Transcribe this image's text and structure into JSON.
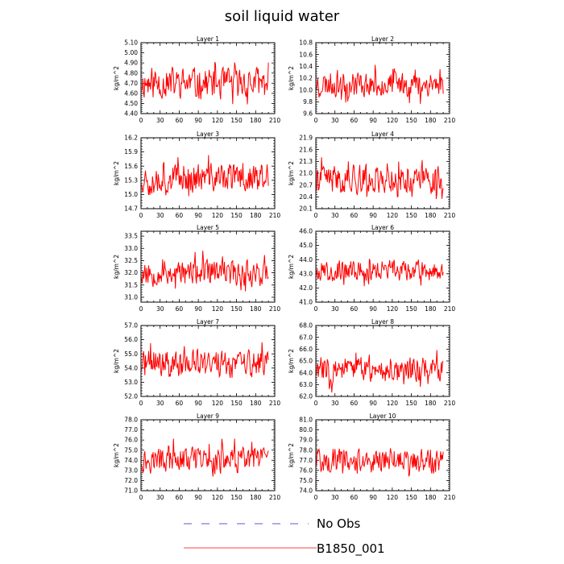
{
  "figure": {
    "title": "soil liquid water"
  },
  "legend": {
    "items": [
      {
        "label": "No Obs",
        "color": "#5a5ad8",
        "style": "dashed"
      },
      {
        "label": "B1850_001",
        "color": "#ff0000",
        "style": "solid"
      }
    ]
  },
  "chart_data": [
    {
      "type": "line",
      "title": "Layer 1",
      "ylabel": "kg/m^2",
      "xlim": [
        0,
        210
      ],
      "ylim": [
        4.4,
        5.1
      ],
      "xticks": [
        "0",
        "30",
        "60",
        "90",
        "120",
        "150",
        "180",
        "210"
      ],
      "yticks": [
        "4.40",
        "4.50",
        "4.60",
        "4.70",
        "4.80",
        "4.90",
        "5.00",
        "5.10"
      ],
      "series": [
        {
          "color": "#ff0000",
          "x_start": 1,
          "n": 200,
          "mean": 4.7,
          "amp": 0.25,
          "seed": 11
        }
      ]
    },
    {
      "type": "line",
      "title": "Layer 2",
      "ylabel": "kg/m^2",
      "xlim": [
        0,
        210
      ],
      "ylim": [
        9.6,
        10.8
      ],
      "xticks": [
        "0",
        "30",
        "60",
        "90",
        "120",
        "150",
        "180",
        "210"
      ],
      "yticks": [
        "9.6",
        "9.8",
        "10.0",
        "10.2",
        "10.4",
        "10.6",
        "10.8"
      ],
      "series": [
        {
          "color": "#ff0000",
          "x_start": 1,
          "n": 200,
          "mean": 10.1,
          "amp": 0.35,
          "seed": 23
        }
      ]
    },
    {
      "type": "line",
      "title": "Layer 3",
      "ylabel": "kg/m^2",
      "xlim": [
        0,
        210
      ],
      "ylim": [
        14.7,
        16.2
      ],
      "xticks": [
        "0",
        "30",
        "60",
        "90",
        "120",
        "150",
        "180",
        "210"
      ],
      "yticks": [
        "14.7",
        "15.0",
        "15.3",
        "15.6",
        "15.9",
        "16.2"
      ],
      "series": [
        {
          "color": "#ff0000",
          "x_start": 1,
          "n": 200,
          "mean": 15.35,
          "amp": 0.5,
          "seed": 37
        }
      ]
    },
    {
      "type": "line",
      "title": "Layer 4",
      "ylabel": "kg/m^2",
      "xlim": [
        0,
        210
      ],
      "ylim": [
        20.1,
        21.9
      ],
      "xticks": [
        "0",
        "30",
        "60",
        "90",
        "120",
        "150",
        "180",
        "210"
      ],
      "yticks": [
        "20.1",
        "20.4",
        "20.7",
        "21.0",
        "21.3",
        "21.6",
        "21.9"
      ],
      "series": [
        {
          "color": "#ff0000",
          "x_start": 1,
          "n": 200,
          "mean": 20.85,
          "amp": 0.6,
          "seed": 41
        }
      ]
    },
    {
      "type": "line",
      "title": "Layer 5",
      "ylabel": "kg/m^2",
      "xlim": [
        0,
        210
      ],
      "ylim": [
        30.8,
        33.7
      ],
      "xticks": [
        "0",
        "30",
        "60",
        "90",
        "120",
        "150",
        "180",
        "210"
      ],
      "yticks": [
        "31.0",
        "31.5",
        "32.0",
        "32.5",
        "33.0",
        "33.5"
      ],
      "series": [
        {
          "color": "#ff0000",
          "x_start": 1,
          "n": 200,
          "mean": 32.0,
          "amp": 0.85,
          "seed": 53
        }
      ]
    },
    {
      "type": "line",
      "title": "Layer 6",
      "ylabel": "kg/m^2",
      "xlim": [
        0,
        210
      ],
      "ylim": [
        41.0,
        46.0
      ],
      "xticks": [
        "0",
        "30",
        "60",
        "90",
        "120",
        "150",
        "180",
        "210"
      ],
      "yticks": [
        "41.0",
        "42.0",
        "43.0",
        "44.0",
        "45.0",
        "46.0"
      ],
      "series": [
        {
          "color": "#ff0000",
          "x_start": 1,
          "n": 200,
          "mean": 43.2,
          "amp": 1.2,
          "seed": 67
        }
      ]
    },
    {
      "type": "line",
      "title": "Layer 7",
      "ylabel": "kg/m^2",
      "xlim": [
        0,
        210
      ],
      "ylim": [
        52.0,
        57.0
      ],
      "xticks": [
        "0",
        "30",
        "60",
        "90",
        "120",
        "150",
        "180",
        "210"
      ],
      "yticks": [
        "52.0",
        "53.0",
        "54.0",
        "55.0",
        "56.0",
        "57.0"
      ],
      "series": [
        {
          "color": "#ff0000",
          "x_start": 1,
          "n": 200,
          "mean": 54.3,
          "amp": 1.6,
          "seed": 71
        }
      ]
    },
    {
      "type": "line",
      "title": "Layer 8",
      "ylabel": "kg/m^2",
      "xlim": [
        0,
        210
      ],
      "ylim": [
        62.0,
        68.0
      ],
      "xticks": [
        "0",
        "30",
        "60",
        "90",
        "120",
        "150",
        "180",
        "210"
      ],
      "yticks": [
        "62.0",
        "63.0",
        "64.0",
        "65.0",
        "66.0",
        "67.0",
        "68.0"
      ],
      "series": [
        {
          "color": "#ff0000",
          "x_start": 1,
          "n": 200,
          "mean": 64.3,
          "amp": 1.8,
          "seed": 83
        }
      ]
    },
    {
      "type": "line",
      "title": "Layer 9",
      "ylabel": "kg/m^2",
      "xlim": [
        0,
        210
      ],
      "ylim": [
        71.0,
        78.0
      ],
      "xticks": [
        "0",
        "30",
        "60",
        "90",
        "120",
        "150",
        "180",
        "210"
      ],
      "yticks": [
        "71.0",
        "72.0",
        "73.0",
        "74.0",
        "75.0",
        "76.0",
        "77.0",
        "78.0"
      ],
      "series": [
        {
          "color": "#ff0000",
          "x_start": 1,
          "n": 200,
          "mean": 74.0,
          "amp": 2.0,
          "seed": 97
        }
      ]
    },
    {
      "type": "line",
      "title": "Layer 10",
      "ylabel": "kg/m^2",
      "xlim": [
        0,
        210
      ],
      "ylim": [
        74.0,
        81.0
      ],
      "xticks": [
        "0",
        "30",
        "60",
        "90",
        "120",
        "150",
        "180",
        "210"
      ],
      "yticks": [
        "74.0",
        "75.0",
        "76.0",
        "77.0",
        "78.0",
        "79.0",
        "80.0",
        "81.0"
      ],
      "series": [
        {
          "color": "#ff0000",
          "x_start": 1,
          "n": 200,
          "mean": 77.0,
          "amp": 2.0,
          "seed": 101
        }
      ]
    }
  ]
}
